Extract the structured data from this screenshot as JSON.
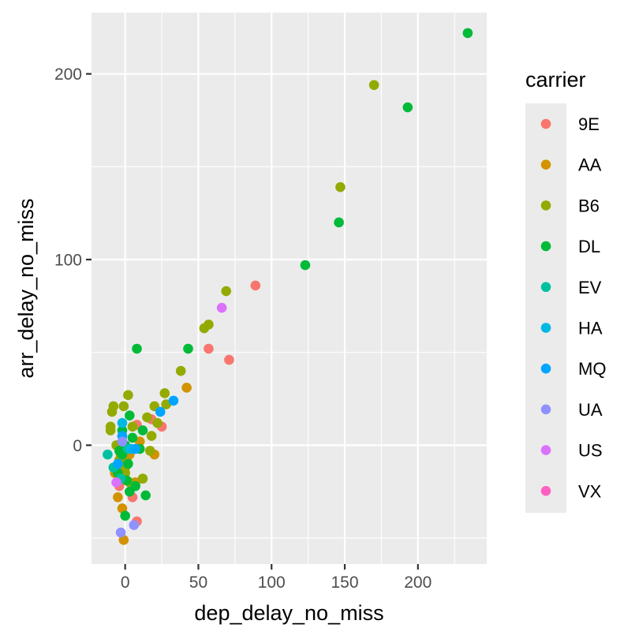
{
  "chart_data": {
    "type": "scatter",
    "xlabel": "dep_delay_no_miss",
    "ylabel": "arr_delay_no_miss",
    "xlim": [
      -23,
      247
    ],
    "ylim": [
      -64,
      233
    ],
    "x_ticks": [
      0,
      50,
      100,
      150,
      200
    ],
    "y_ticks": [
      0,
      100,
      200
    ],
    "x_tick_labels": [
      "0",
      "50",
      "100",
      "150",
      "200"
    ],
    "y_tick_labels": [
      "0",
      "100",
      "200"
    ],
    "grid": true,
    "legend_title": "carrier",
    "legend_position": "right",
    "series": [
      {
        "name": "9E",
        "color": "#F8766D",
        "points": [
          [
            89,
            86
          ],
          [
            57,
            52
          ],
          [
            71,
            46
          ],
          [
            25,
            10
          ],
          [
            8,
            11
          ],
          [
            18,
            14
          ],
          [
            -6,
            -12
          ],
          [
            8,
            -41
          ],
          [
            -4,
            -22
          ],
          [
            5,
            -28
          ]
        ]
      },
      {
        "name": "AA",
        "color": "#D39200",
        "points": [
          [
            42,
            31
          ],
          [
            -1,
            -51
          ],
          [
            -5,
            -28
          ],
          [
            -2,
            -34
          ],
          [
            7,
            -20
          ],
          [
            20,
            -5
          ],
          [
            3,
            -5
          ],
          [
            10,
            2
          ],
          [
            1,
            -8
          ],
          [
            -7,
            -15
          ]
        ]
      },
      {
        "name": "B6",
        "color": "#93AA00",
        "points": [
          [
            170,
            194
          ],
          [
            147,
            139
          ],
          [
            69,
            83
          ],
          [
            57,
            65
          ],
          [
            54,
            63
          ],
          [
            38,
            40
          ],
          [
            27,
            28
          ],
          [
            28,
            22
          ],
          [
            20,
            21
          ],
          [
            2,
            27
          ],
          [
            -8,
            21
          ],
          [
            -1,
            21
          ],
          [
            -9,
            18
          ],
          [
            -10,
            10
          ],
          [
            -10,
            8
          ],
          [
            15,
            15
          ],
          [
            -6,
            0
          ],
          [
            0,
            -15
          ],
          [
            -3,
            -5
          ],
          [
            12,
            -18
          ],
          [
            17,
            -3
          ],
          [
            3,
            -20
          ],
          [
            0,
            -12
          ],
          [
            -4,
            -8
          ],
          [
            18,
            5
          ],
          [
            22,
            12
          ],
          [
            -2,
            2
          ],
          [
            5,
            10
          ]
        ]
      },
      {
        "name": "DL",
        "color": "#00BA38",
        "points": [
          [
            234,
            222
          ],
          [
            193,
            182
          ],
          [
            146,
            120
          ],
          [
            123,
            97
          ],
          [
            43,
            52
          ],
          [
            8,
            52
          ],
          [
            3,
            16
          ],
          [
            12,
            8
          ],
          [
            -2,
            -5
          ],
          [
            -5,
            -15
          ],
          [
            3,
            -25
          ],
          [
            0,
            -38
          ],
          [
            14,
            -27
          ],
          [
            7,
            -22
          ],
          [
            2,
            -10
          ],
          [
            5,
            4
          ],
          [
            0,
            0
          ],
          [
            -4,
            -3
          ],
          [
            1,
            -19
          ],
          [
            10,
            -2
          ],
          [
            -2,
            8
          ]
        ]
      },
      {
        "name": "EV",
        "color": "#00C19F",
        "points": [
          [
            -12,
            -5
          ],
          [
            -3,
            -18
          ],
          [
            -8,
            -12
          ],
          [
            2,
            -2
          ]
        ]
      },
      {
        "name": "HA",
        "color": "#00B9E3",
        "points": [
          [
            -2,
            12
          ],
          [
            4,
            -2
          ]
        ]
      },
      {
        "name": "MQ",
        "color": "#00A5FF",
        "points": [
          [
            33,
            24
          ],
          [
            7,
            -2
          ],
          [
            24,
            18
          ],
          [
            -2,
            5
          ],
          [
            -5,
            -10
          ]
        ]
      },
      {
        "name": "UA",
        "color": "#8F91FF",
        "points": [
          [
            -3,
            -47
          ],
          [
            6,
            -43
          ],
          [
            -2,
            2
          ]
        ]
      },
      {
        "name": "US",
        "color": "#DB72FB",
        "points": [
          [
            66,
            74
          ],
          [
            -6,
            -20
          ]
        ]
      },
      {
        "name": "VX",
        "color": "#FF61C3",
        "points": []
      }
    ]
  }
}
